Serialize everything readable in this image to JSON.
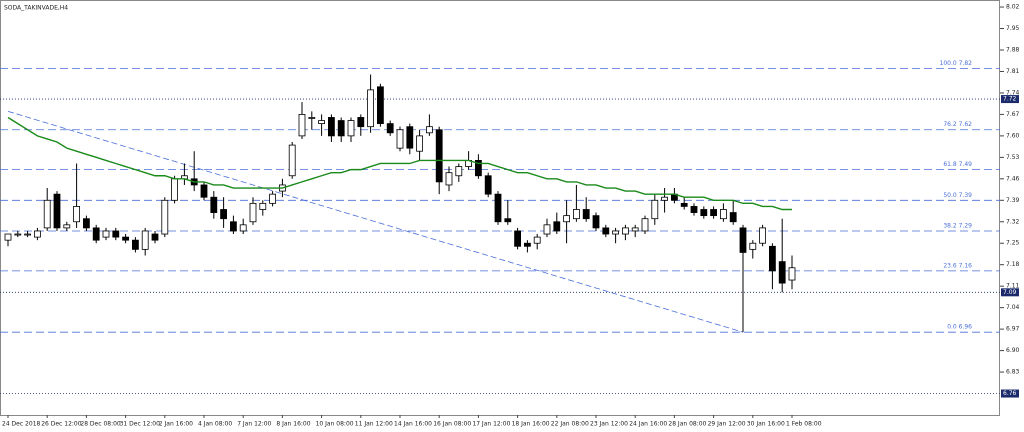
{
  "chart_data": {
    "type": "candlestick",
    "title": "SODA_TAKINVADE,H4",
    "categories": [
      "24 Dec 2018",
      null,
      null,
      null,
      "26 Dec 12:00",
      null,
      null,
      null,
      "28 Dec 08:00",
      null,
      null,
      null,
      "31 Dec 12:00",
      null,
      null,
      null,
      "2 Jan 16:00",
      null,
      null,
      null,
      "4 Jan 08:00",
      null,
      null,
      null,
      "7 Jan 12:00",
      null,
      null,
      null,
      "8 Jan 16:00",
      null,
      null,
      null,
      "10 Jan 08:00",
      null,
      null,
      null,
      "11 Jan 12:00",
      null,
      null,
      null,
      "14 Jan 16:00",
      null,
      null,
      null,
      "16 Jan 08:00",
      null,
      null,
      null,
      "17 Jan 12:00",
      null,
      null,
      null,
      "18 Jan 16:00",
      null,
      null,
      null,
      "22 Jan 08:00",
      null,
      null,
      null,
      "23 Jan 12:00",
      null,
      null,
      null,
      "24 Jan 16:00",
      null,
      null,
      null,
      "28 Jan 08:00",
      null,
      null,
      null,
      "29 Jan 12:00",
      null,
      null,
      null,
      "30 Jan 16:00",
      null,
      null,
      null,
      "1 Feb 08:00"
    ],
    "open": [
      7.26,
      7.28,
      7.28,
      7.27,
      7.3,
      7.41,
      7.3,
      7.32,
      7.33,
      7.3,
      7.27,
      7.29,
      7.27,
      7.26,
      7.23,
      7.28,
      7.28,
      7.39,
      7.46,
      7.46,
      7.44,
      7.4,
      7.36,
      7.32,
      7.29,
      7.32,
      7.36,
      7.38,
      7.42,
      7.47,
      7.6,
      7.66,
      7.64,
      7.66,
      7.65,
      7.6,
      7.66,
      7.63,
      7.76,
      7.64,
      7.56,
      7.63,
      7.55,
      7.61,
      7.62,
      7.44,
      7.47,
      7.5,
      7.52,
      7.47,
      7.41,
      7.33,
      7.29,
      7.25,
      7.25,
      7.28,
      7.32,
      7.32,
      7.33,
      7.36,
      7.34,
      7.3,
      7.28,
      7.28,
      7.29,
      7.29,
      7.33,
      7.39,
      7.41,
      7.38,
      7.37,
      7.36,
      7.36,
      7.33,
      7.35,
      7.3,
      7.23,
      7.25,
      7.24,
      7.19,
      7.13
    ],
    "high": [
      7.28,
      7.29,
      7.29,
      7.3,
      7.43,
      7.42,
      7.32,
      7.51,
      7.34,
      7.31,
      7.3,
      7.3,
      7.28,
      7.27,
      7.3,
      7.29,
      7.4,
      7.47,
      7.51,
      7.55,
      7.45,
      7.42,
      7.4,
      7.34,
      7.33,
      7.4,
      7.39,
      7.42,
      7.46,
      7.58,
      7.71,
      7.68,
      7.67,
      7.67,
      7.66,
      7.66,
      7.67,
      7.8,
      7.77,
      7.65,
      7.63,
      7.64,
      7.62,
      7.67,
      7.63,
      7.5,
      7.51,
      7.55,
      7.54,
      7.48,
      7.42,
      7.39,
      7.3,
      7.26,
      7.28,
      7.33,
      7.35,
      7.39,
      7.44,
      7.4,
      7.35,
      7.31,
      7.3,
      7.31,
      7.31,
      7.34,
      7.41,
      7.43,
      7.43,
      7.4,
      7.38,
      7.37,
      7.37,
      7.38,
      7.39,
      7.31,
      7.26,
      7.31,
      7.25,
      7.33,
      7.21
    ],
    "low": [
      7.24,
      7.27,
      7.27,
      7.26,
      7.29,
      7.29,
      7.29,
      7.3,
      7.29,
      7.25,
      7.26,
      7.26,
      7.25,
      7.22,
      7.21,
      7.25,
      7.27,
      7.38,
      7.44,
      7.42,
      7.39,
      7.33,
      7.3,
      7.28,
      7.28,
      7.31,
      7.34,
      7.37,
      7.4,
      7.46,
      7.59,
      7.62,
      7.6,
      7.58,
      7.58,
      7.58,
      7.6,
      7.61,
      7.63,
      7.6,
      7.55,
      7.54,
      7.52,
      7.6,
      7.41,
      7.42,
      7.45,
      7.49,
      7.46,
      7.4,
      7.31,
      7.31,
      7.23,
      7.22,
      7.23,
      7.27,
      7.28,
      7.25,
      7.32,
      7.32,
      7.29,
      7.27,
      7.25,
      7.26,
      7.27,
      7.28,
      7.31,
      7.35,
      7.38,
      7.36,
      7.34,
      7.33,
      7.33,
      7.32,
      7.31,
      6.96,
      7.2,
      7.24,
      7.1,
      7.09,
      7.1
    ],
    "close": [
      7.28,
      7.28,
      7.28,
      7.29,
      7.39,
      7.3,
      7.31,
      7.37,
      7.3,
      7.26,
      7.29,
      7.27,
      7.26,
      7.23,
      7.29,
      7.26,
      7.39,
      7.46,
      7.47,
      7.44,
      7.4,
      7.35,
      7.33,
      7.29,
      7.31,
      7.38,
      7.38,
      7.41,
      7.44,
      7.57,
      7.67,
      7.66,
      7.65,
      7.6,
      7.6,
      7.65,
      7.63,
      7.75,
      7.64,
      7.61,
      7.62,
      7.56,
      7.6,
      7.63,
      7.45,
      7.48,
      7.5,
      7.52,
      7.47,
      7.41,
      7.32,
      7.32,
      7.24,
      7.24,
      7.27,
      7.31,
      7.29,
      7.34,
      7.36,
      7.33,
      7.3,
      7.28,
      7.29,
      7.3,
      7.3,
      7.33,
      7.39,
      7.4,
      7.39,
      7.37,
      7.35,
      7.34,
      7.34,
      7.36,
      7.32,
      7.22,
      7.25,
      7.3,
      7.16,
      7.12,
      7.17
    ],
    "up_color": "#ffffff",
    "down_color": "#000000",
    "ma": {
      "color": "#1a8a1a",
      "values": [
        7.66,
        7.64,
        7.62,
        7.6,
        7.59,
        7.58,
        7.56,
        7.55,
        7.54,
        7.53,
        7.52,
        7.51,
        7.5,
        7.49,
        7.48,
        7.47,
        7.47,
        7.46,
        7.46,
        7.45,
        7.45,
        7.44,
        7.44,
        7.43,
        7.43,
        7.43,
        7.43,
        7.43,
        7.43,
        7.44,
        7.45,
        7.46,
        7.47,
        7.48,
        7.48,
        7.49,
        7.49,
        7.5,
        7.51,
        7.51,
        7.51,
        7.51,
        7.52,
        7.52,
        7.52,
        7.52,
        7.52,
        7.52,
        7.51,
        7.51,
        7.5,
        7.49,
        7.48,
        7.48,
        7.47,
        7.46,
        7.46,
        7.45,
        7.45,
        7.44,
        7.44,
        7.43,
        7.43,
        7.42,
        7.42,
        7.41,
        7.41,
        7.41,
        7.41,
        7.4,
        7.4,
        7.4,
        7.39,
        7.39,
        7.39,
        7.38,
        7.38,
        7.37,
        7.37,
        7.36,
        7.36
      ]
    },
    "trendline": {
      "color": "#4a6fd8",
      "bars": [
        0,
        75
      ],
      "prices": [
        7.68,
        6.96
      ]
    },
    "fib_levels": [
      {
        "value": 7.82,
        "label": "100.0 7.82"
      },
      {
        "value": 7.62,
        "label": "76.2 7.62"
      },
      {
        "value": 7.49,
        "label": "61.8 7.49"
      },
      {
        "value": 7.39,
        "label": "50.0 7.39"
      },
      {
        "value": 7.29,
        "label": "38.2 7.29"
      },
      {
        "value": 7.16,
        "label": "23.6 7.16"
      },
      {
        "value": 6.96,
        "label": "0.0 6.96"
      }
    ],
    "price_lines": [
      7.72,
      7.09,
      6.76
    ],
    "ylim": [
      6.69,
      8.043
    ],
    "yticks": [
      8.02,
      7.95,
      7.88,
      7.81,
      7.74,
      7.67,
      {
        "value": 7.6,
        "label": "7.60"
      },
      7.53,
      7.46,
      7.39,
      7.32,
      7.25,
      7.18,
      7.11,
      7.04,
      6.97,
      {
        "value": 6.9,
        "label": "6.90"
      },
      6.83
    ]
  }
}
